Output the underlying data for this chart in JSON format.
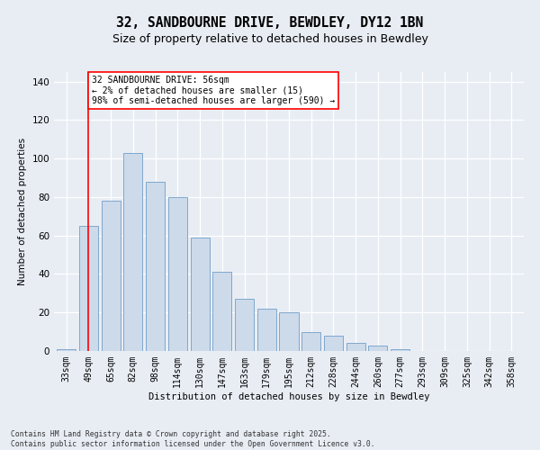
{
  "title": "32, SANDBOURNE DRIVE, BEWDLEY, DY12 1BN",
  "subtitle": "Size of property relative to detached houses in Bewdley",
  "xlabel": "Distribution of detached houses by size in Bewdley",
  "ylabel": "Number of detached properties",
  "footer": "Contains HM Land Registry data © Crown copyright and database right 2025.\nContains public sector information licensed under the Open Government Licence v3.0.",
  "categories": [
    "33sqm",
    "49sqm",
    "65sqm",
    "82sqm",
    "98sqm",
    "114sqm",
    "130sqm",
    "147sqm",
    "163sqm",
    "179sqm",
    "195sqm",
    "212sqm",
    "228sqm",
    "244sqm",
    "260sqm",
    "277sqm",
    "293sqm",
    "309sqm",
    "325sqm",
    "342sqm",
    "358sqm"
  ],
  "bar_heights": [
    1,
    65,
    78,
    103,
    88,
    80,
    59,
    41,
    27,
    22,
    20,
    10,
    8,
    4,
    3,
    1,
    0,
    0,
    0,
    0,
    0
  ],
  "bar_color": "#ccdaea",
  "bar_edge_color": "#80a8cc",
  "red_line_x": 1.0,
  "annotation_text": "32 SANDBOURNE DRIVE: 56sqm\n← 2% of detached houses are smaller (15)\n98% of semi-detached houses are larger (590) →",
  "ylim_max": 145,
  "yticks": [
    0,
    20,
    40,
    60,
    80,
    100,
    120,
    140
  ],
  "bg_color": "#e8edf4",
  "title_fontsize": 10.5,
  "subtitle_fontsize": 9,
  "axis_fontsize": 7.5,
  "tick_fontsize": 7
}
